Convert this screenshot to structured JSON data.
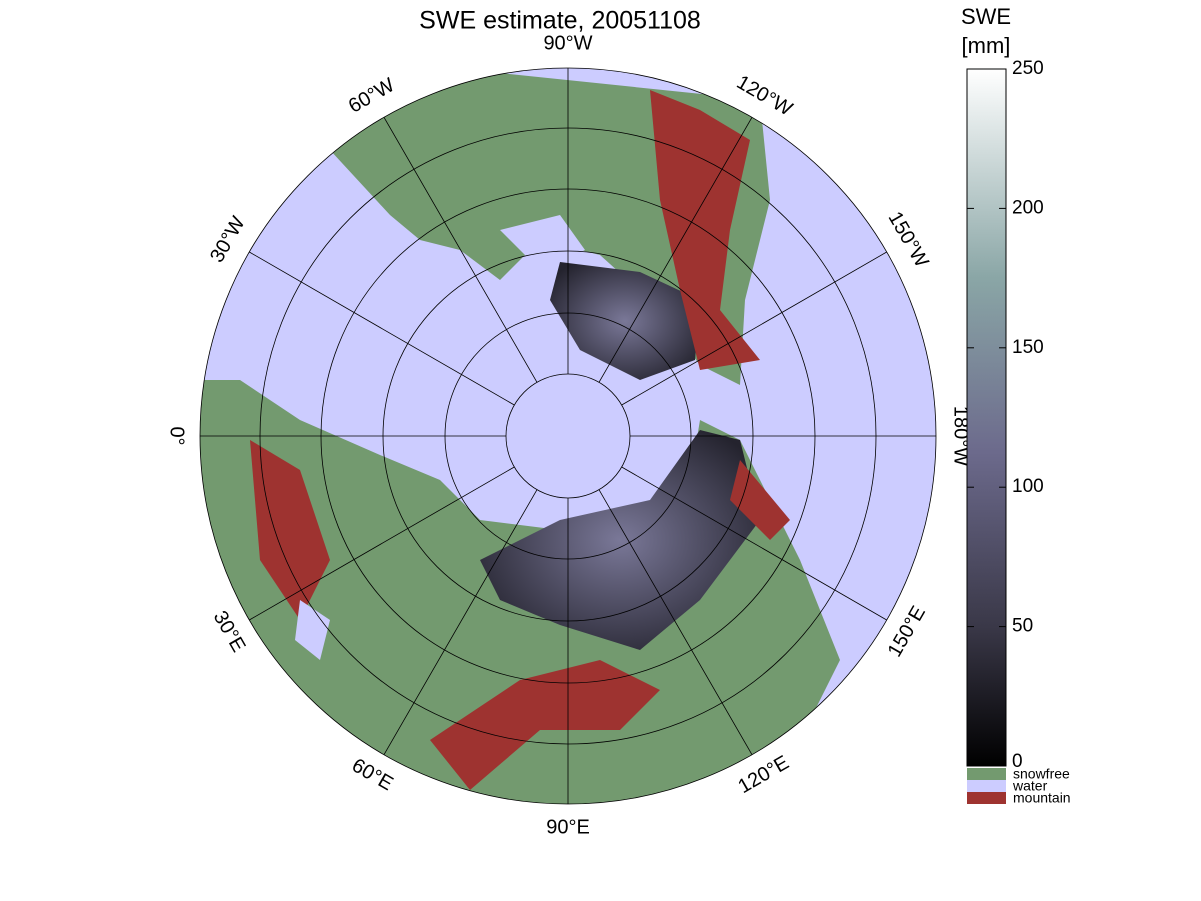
{
  "title": "SWE estimate, 20051108",
  "longitude_labels": [
    "0°",
    "30°E",
    "60°E",
    "90°E",
    "120°E",
    "150°E",
    "180°W",
    "150°W",
    "120°W",
    "90°W",
    "60°W",
    "30°W"
  ],
  "colorbar": {
    "label": [
      "SWE",
      "[mm]"
    ],
    "lim": [
      0,
      250
    ],
    "ticks": [
      0,
      50,
      100,
      150,
      200,
      250
    ]
  },
  "legend": [
    {
      "label": "snowfree",
      "color": "#739a6f"
    },
    {
      "label": "water",
      "color": "#ccccff"
    },
    {
      "label": "mountain",
      "color": "#9e3330"
    }
  ]
}
